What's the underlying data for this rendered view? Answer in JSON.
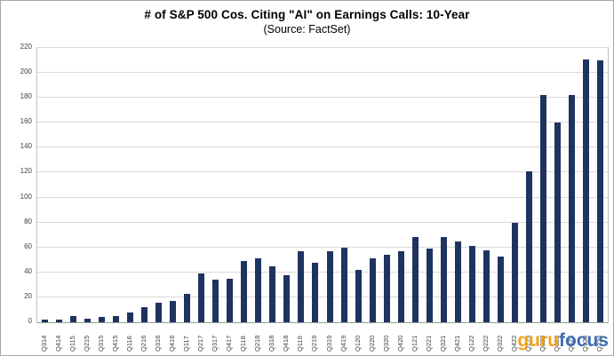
{
  "header": {
    "title": "# of S&P 500 Cos. Citing \"AI\" on Earnings Calls: 10-Year",
    "subtitle": "(Source: FactSet)"
  },
  "watermark": {
    "part1": "guru",
    "part2": "focus",
    "color1": "#f2a21d",
    "color2": "#3e6db5"
  },
  "colors": {
    "bar": "#1e3360",
    "gridline": "#d9d9d9",
    "plot_border": "#bfbfbf",
    "axis_text": "#404040"
  },
  "chart_data": {
    "type": "bar",
    "title": "# of S&P 500 Cos. Citing \"AI\" on Earnings Calls: 10-Year",
    "subtitle": "(Source: FactSet)",
    "xlabel": "",
    "ylabel": "",
    "ylim": [
      0,
      220
    ],
    "ystep": 20,
    "ytick_labels": [
      "0",
      "20",
      "40",
      "60",
      "80",
      "100",
      "120",
      "140",
      "160",
      "180",
      "200",
      "220"
    ],
    "grid": true,
    "legend": false,
    "categories": [
      "Q314",
      "Q414",
      "Q115",
      "Q215",
      "Q315",
      "Q415",
      "Q116",
      "Q216",
      "Q316",
      "Q416",
      "Q117",
      "Q217",
      "Q317",
      "Q417",
      "Q118",
      "Q218",
      "Q318",
      "Q418",
      "Q119",
      "Q219",
      "Q319",
      "Q419",
      "Q120",
      "Q220",
      "Q320",
      "Q420",
      "Q121",
      "Q221",
      "Q321",
      "Q421",
      "Q122",
      "Q222",
      "Q322",
      "Q422",
      "Q123",
      "Q223",
      "Q323",
      "Q423",
      "Q124",
      "Q224"
    ],
    "values": [
      2,
      2,
      5,
      3,
      4,
      5,
      8,
      12,
      16,
      17,
      23,
      39,
      34,
      35,
      49,
      51,
      45,
      38,
      57,
      48,
      57,
      60,
      42,
      51,
      54,
      57,
      68,
      59,
      68,
      65,
      61,
      58,
      53,
      80,
      121,
      182,
      160,
      182,
      211,
      210
    ]
  }
}
